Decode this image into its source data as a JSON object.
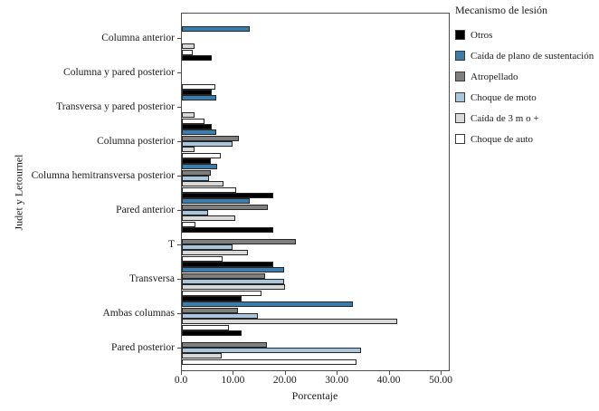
{
  "chart_data": {
    "type": "bar",
    "orientation": "horizontal",
    "xlabel": "Porcentaje",
    "ylabel": "Judet y Letournel",
    "xlim": [
      0,
      51.7
    ],
    "grid": false,
    "legend_title": "Mecanismo de lesión",
    "legend_position": "top-right-outside",
    "x_ticks": [
      {
        "value": 0,
        "label": "0.0"
      },
      {
        "value": 10,
        "label": "10.00"
      },
      {
        "value": 20,
        "label": "20.00"
      },
      {
        "value": 30,
        "label": "30.00"
      },
      {
        "value": 40,
        "label": "40.00"
      },
      {
        "value": 50,
        "label": "50.00"
      }
    ],
    "categories": [
      "Columna anterior",
      "Columna y pared posterior",
      "Transversa y pared posterior",
      "Columna posterior",
      "Columna hemitransversa posterior",
      "Pared anterior",
      "T",
      "Transversa",
      "Ambas columnas",
      "Pared posterior"
    ],
    "series": [
      {
        "name": "Otros",
        "color": "#000000",
        "values": [
          0,
          5.7,
          5.7,
          5.7,
          5.6,
          17.5,
          17.6,
          17.6,
          11.5,
          11.5
        ]
      },
      {
        "name": "Caída de plano de sustentación",
        "color": "#3c7dab",
        "values": [
          13.1,
          0,
          6.6,
          6.6,
          6.8,
          13.1,
          0,
          19.7,
          33.0,
          0
        ]
      },
      {
        "name": "Atropellado",
        "color": "#7f7f7f",
        "values": [
          0,
          0,
          0,
          11.0,
          5.5,
          16.5,
          22.0,
          16.0,
          10.8,
          16.4
        ]
      },
      {
        "name": "Choque de moto",
        "color": "#a9c6df",
        "values": [
          0,
          0,
          0,
          9.7,
          5.2,
          5.0,
          9.8,
          19.7,
          14.6,
          34.5
        ]
      },
      {
        "name": "Caída de 3 m o +",
        "color": "#d9d9d9",
        "values": [
          2.5,
          0,
          2.4,
          2.4,
          8.0,
          10.3,
          12.7,
          19.8,
          41.5,
          7.7
        ]
      },
      {
        "name": "Choque de auto",
        "color": "#ffffff",
        "values": [
          2.0,
          6.5,
          4.3,
          7.5,
          10.4,
          2.6,
          7.8,
          15.3,
          9.1,
          33.6
        ]
      }
    ]
  }
}
